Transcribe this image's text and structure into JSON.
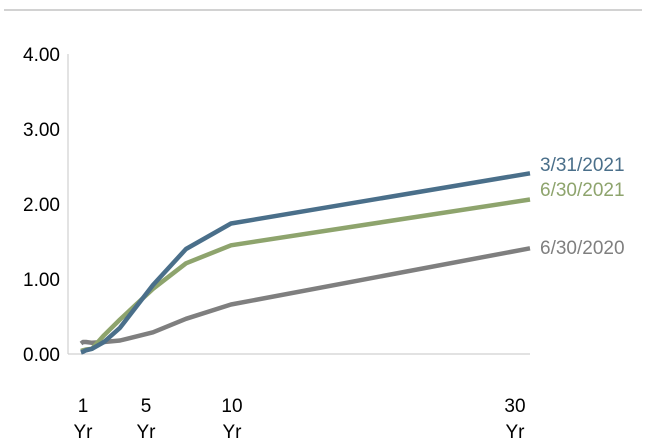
{
  "chart_data": {
    "type": "line",
    "title": "",
    "xlabel": "",
    "ylabel": "",
    "ylim": [
      0,
      4
    ],
    "y_ticks": [
      "0.00",
      "1.00",
      "2.00",
      "3.00",
      "4.00"
    ],
    "x_ticks": [
      {
        "line1": "1",
        "line2": "Yr",
        "tenor": 1
      },
      {
        "line1": "5",
        "line2": "Yr",
        "tenor": 5
      },
      {
        "line1": "10",
        "line2": "Yr",
        "tenor": 10
      },
      {
        "line1": "30",
        "line2": "Yr",
        "tenor": 30
      }
    ],
    "grid": false,
    "legend": "inline labels at right end of each line",
    "series": [
      {
        "name": "6/30/2020",
        "color": "#7f7f7f",
        "points": [
          [
            0.083,
            0.14
          ],
          [
            0.25,
            0.16
          ],
          [
            0.5,
            0.16
          ],
          [
            1,
            0.15
          ],
          [
            2,
            0.16
          ],
          [
            3,
            0.18
          ],
          [
            5,
            0.29
          ],
          [
            7,
            0.47
          ],
          [
            10,
            0.66
          ],
          [
            30,
            1.41
          ]
        ]
      },
      {
        "name": "6/30/2021",
        "color": "#8ea46d",
        "points": [
          [
            0.083,
            0.04
          ],
          [
            0.25,
            0.05
          ],
          [
            0.5,
            0.06
          ],
          [
            1,
            0.07
          ],
          [
            2,
            0.25
          ],
          [
            3,
            0.46
          ],
          [
            5,
            0.87
          ],
          [
            7,
            1.21
          ],
          [
            10,
            1.45
          ],
          [
            30,
            2.06
          ]
        ]
      },
      {
        "name": "3/31/2021",
        "color": "#4a6f8a",
        "points": [
          [
            0.083,
            0.02
          ],
          [
            0.25,
            0.03
          ],
          [
            0.5,
            0.05
          ],
          [
            1,
            0.07
          ],
          [
            2,
            0.16
          ],
          [
            3,
            0.35
          ],
          [
            5,
            0.92
          ],
          [
            7,
            1.4
          ],
          [
            10,
            1.74
          ],
          [
            30,
            2.41
          ]
        ]
      }
    ]
  }
}
